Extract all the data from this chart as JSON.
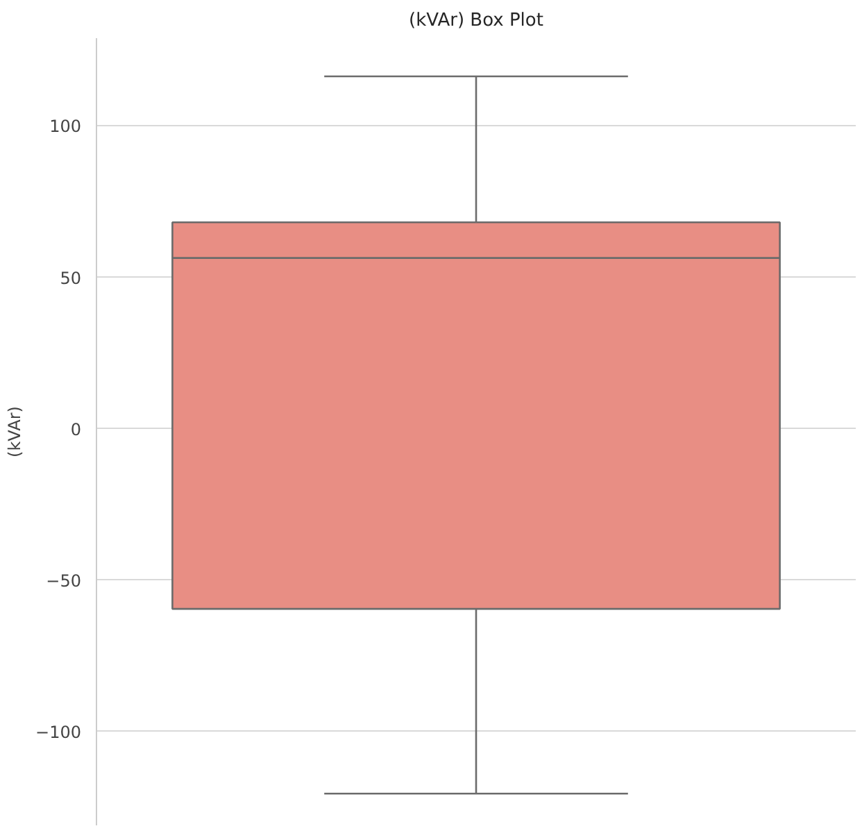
{
  "chart_data": {
    "type": "box",
    "title": "(kVAr) Box Plot",
    "ylabel": "(kVAr)",
    "categories": [
      null
    ],
    "boxes": [
      {
        "low": -120.5,
        "q1": -59.5,
        "median": 56.4,
        "q3": 68.2,
        "high": 116.4
      }
    ],
    "color": "#e88e84",
    "ylim": [
      -131,
      129
    ],
    "yticks": [
      {
        "value": -100,
        "label": "−100"
      },
      {
        "value": -50,
        "label": "−50"
      },
      0,
      50,
      100
    ],
    "grid": "y",
    "tick_labels": "y"
  }
}
